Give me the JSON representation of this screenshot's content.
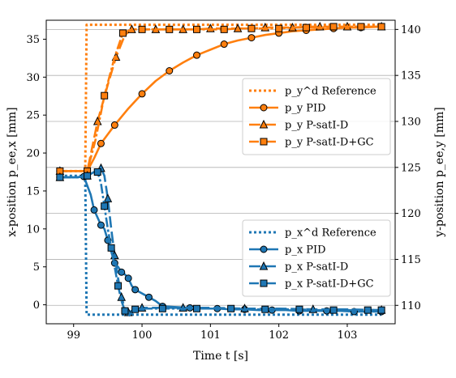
{
  "chart_data": {
    "type": "line",
    "xlabel": "Time t [s]",
    "ylabel_left": "x-position p_ee,x [mm]",
    "ylabel_right": "y-position p_ee,y [mm]",
    "xlim": [
      98.6,
      103.7
    ],
    "ylim_left": [
      -2.5,
      37.5
    ],
    "ylim_right": [
      108,
      141
    ],
    "xticks": [
      99,
      100,
      101,
      102,
      103
    ],
    "yticks_left": [
      0,
      5,
      10,
      15,
      20,
      25,
      30,
      35
    ],
    "yticks_right": [
      110,
      115,
      120,
      125,
      130,
      135,
      140
    ],
    "grid": "horizontal on right axis",
    "colors": {
      "orange": "#ff7f0e",
      "blue": "#1f77b4"
    },
    "legend_top": {
      "placement": "right-middle",
      "entries": [
        {
          "text": "p_y^d Reference",
          "style": "dotted",
          "marker": "none"
        },
        {
          "text": "p_y PID",
          "style": "solid",
          "marker": "circle"
        },
        {
          "text": "p_y P-satI-D",
          "style": "dashed",
          "marker": "triangle"
        },
        {
          "text": "p_y P-satI-D+GC",
          "style": "dashdot",
          "marker": "square"
        }
      ]
    },
    "legend_bottom": {
      "placement": "lower-right",
      "entries": [
        {
          "text": "p_x^d Reference",
          "style": "dotted",
          "marker": "none"
        },
        {
          "text": "p_x PID",
          "style": "solid",
          "marker": "circle"
        },
        {
          "text": "p_x P-satI-D",
          "style": "dashed",
          "marker": "triangle"
        },
        {
          "text": "p_x P-satI-D+GC",
          "style": "dashdot",
          "marker": "square"
        }
      ]
    },
    "series": [
      {
        "name": "p_y^d Reference",
        "axis": "right",
        "color": "orange",
        "style": "dotted",
        "marker": "none",
        "x": [
          98.8,
          99.17,
          99.19,
          103.5
        ],
        "y": [
          124.6,
          124.6,
          140.5,
          140.5
        ]
      },
      {
        "name": "p_y PID",
        "axis": "right",
        "color": "orange",
        "style": "solid",
        "marker": "circle",
        "x": [
          98.8,
          99.05,
          99.2,
          99.3,
          99.4,
          99.5,
          99.6,
          99.8,
          100.0,
          100.2,
          100.4,
          100.6,
          100.8,
          101.0,
          101.2,
          101.4,
          101.6,
          101.8,
          102.0,
          102.2,
          102.4,
          102.6,
          102.8,
          103.0,
          103.2,
          103.5
        ],
        "y": [
          124.6,
          124.6,
          124.6,
          126.0,
          127.6,
          128.6,
          129.6,
          131.4,
          133.0,
          134.4,
          135.5,
          136.4,
          137.2,
          137.8,
          138.4,
          138.8,
          139.1,
          139.4,
          139.6,
          139.8,
          139.9,
          140.0,
          140.1,
          140.2,
          140.2,
          140.3
        ]
      },
      {
        "name": "p_y P-satI-D",
        "axis": "right",
        "color": "orange",
        "style": "dashed",
        "marker": "triangle",
        "x": [
          98.8,
          99.2,
          99.35,
          99.5,
          99.62,
          99.75,
          99.85,
          100.0,
          100.2,
          100.4,
          100.6,
          100.8,
          101.0,
          101.2,
          101.4,
          101.6,
          101.8,
          102.0,
          102.2,
          102.4,
          102.6,
          102.8,
          103.0,
          103.2,
          103.5
        ],
        "y": [
          124.6,
          124.6,
          130.0,
          134.0,
          137.0,
          139.4,
          140.0,
          140.0,
          140.0,
          140.0,
          140.0,
          140.0,
          140.1,
          140.1,
          140.1,
          140.1,
          140.2,
          140.2,
          140.2,
          140.3,
          140.3,
          140.3,
          140.3,
          140.3,
          140.3
        ]
      },
      {
        "name": "p_y P-satI-D+GC",
        "axis": "right",
        "color": "orange",
        "style": "dashdot",
        "marker": "square",
        "x": [
          98.8,
          99.05,
          99.2,
          99.32,
          99.45,
          99.6,
          99.72,
          99.85,
          100.0,
          100.2,
          100.4,
          100.6,
          100.8,
          101.0,
          101.2,
          101.4,
          101.6,
          101.8,
          102.0,
          102.2,
          102.4,
          102.6,
          102.8,
          103.0,
          103.2,
          103.5
        ],
        "y": [
          124.6,
          124.6,
          124.6,
          128.0,
          132.8,
          137.0,
          139.6,
          140.0,
          140.0,
          140.0,
          140.0,
          140.0,
          140.0,
          140.0,
          140.0,
          140.1,
          140.1,
          140.1,
          140.1,
          140.2,
          140.2,
          140.2,
          140.3,
          140.3,
          140.3,
          140.3
        ]
      },
      {
        "name": "p_x^d Reference",
        "axis": "left",
        "color": "blue",
        "style": "dotted",
        "marker": "none",
        "x": [
          98.8,
          99.17,
          99.19,
          103.5
        ],
        "y": [
          17.0,
          17.0,
          -1.3,
          -1.3
        ]
      },
      {
        "name": "p_x PID",
        "axis": "left",
        "color": "blue",
        "style": "solid",
        "marker": "circle",
        "x": [
          98.8,
          99.05,
          99.15,
          99.25,
          99.3,
          99.35,
          99.4,
          99.45,
          99.5,
          99.55,
          99.6,
          99.65,
          99.7,
          99.75,
          99.8,
          99.85,
          99.9,
          100.0,
          100.1,
          100.2,
          100.3,
          100.5,
          100.7,
          100.9,
          101.1,
          101.3,
          101.5,
          101.7,
          101.9,
          102.1,
          102.3,
          102.5,
          102.7,
          102.9,
          103.1,
          103.3,
          103.5
        ],
        "y": [
          16.8,
          16.8,
          16.9,
          14.5,
          12.5,
          11.5,
          10.5,
          10.0,
          8.5,
          7.0,
          5.5,
          5.0,
          4.3,
          4.0,
          3.5,
          2.5,
          2.0,
          1.5,
          1.0,
          0.5,
          -0.2,
          -0.3,
          -0.4,
          -0.5,
          -0.5,
          -0.6,
          -0.6,
          -0.7,
          -0.7,
          -0.7,
          -0.8,
          -0.8,
          -0.8,
          -0.8,
          -0.9,
          -0.9,
          -0.9
        ]
      },
      {
        "name": "p_x P-satI-D",
        "axis": "left",
        "color": "blue",
        "style": "dashed",
        "marker": "triangle",
        "x": [
          98.8,
          99.05,
          99.2,
          99.3,
          99.4,
          99.45,
          99.5,
          99.55,
          99.6,
          99.65,
          99.7,
          99.75,
          99.8,
          99.9,
          100.0,
          100.3,
          100.6,
          101.0,
          101.5,
          102.0,
          102.5,
          103.0,
          103.5
        ],
        "y": [
          16.8,
          16.8,
          17.0,
          17.5,
          18.0,
          17.0,
          14.0,
          10.0,
          6.5,
          3.5,
          1.0,
          -0.5,
          -1.0,
          -0.6,
          -0.4,
          -0.4,
          -0.4,
          -0.4,
          -0.5,
          -0.5,
          -0.6,
          -0.6,
          -0.7
        ]
      },
      {
        "name": "p_x P-satI-D+GC",
        "axis": "left",
        "color": "blue",
        "style": "dashdot",
        "marker": "square",
        "x": [
          98.8,
          99.05,
          99.2,
          99.3,
          99.35,
          99.4,
          99.45,
          99.5,
          99.55,
          99.6,
          99.65,
          99.7,
          99.75,
          99.8,
          99.9,
          100.05,
          100.3,
          100.55,
          100.8,
          101.05,
          101.3,
          101.55,
          101.8,
          102.05,
          102.3,
          102.55,
          102.8,
          103.05,
          103.3,
          103.5
        ],
        "y": [
          16.8,
          16.8,
          17.0,
          17.5,
          17.5,
          16.0,
          13.0,
          10.0,
          7.5,
          5.0,
          2.5,
          0.5,
          -0.8,
          -1.5,
          -0.6,
          -0.5,
          -0.5,
          -0.5,
          -0.5,
          -0.5,
          -0.5,
          -0.6,
          -0.6,
          -0.6,
          -0.6,
          -0.7,
          -0.7,
          -0.7,
          -0.7,
          -0.7
        ]
      }
    ]
  }
}
